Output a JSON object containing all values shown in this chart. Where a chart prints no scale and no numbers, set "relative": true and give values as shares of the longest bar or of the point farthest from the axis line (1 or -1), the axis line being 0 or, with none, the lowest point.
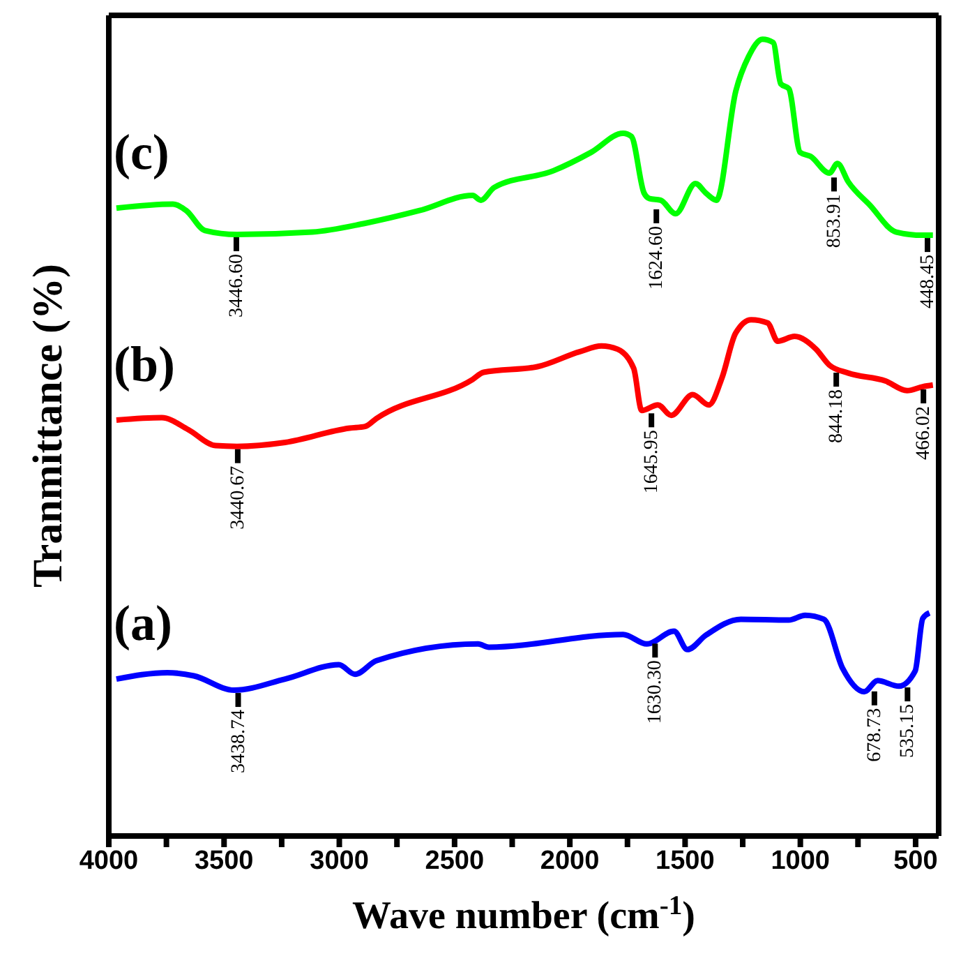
{
  "chart_data": {
    "type": "line",
    "xlabel": "Wave number (cm$^{-1}$)",
    "ylabel": "Tranmittance (%)",
    "relative": true,
    "tick_labels": "x",
    "legend": false,
    "marker": "none",
    "line_style": "solid",
    "xlim": [
      4000,
      400
    ],
    "xticks": [
      4000,
      {
        "value": 3750,
        "label": null
      },
      3500,
      {
        "value": 3250,
        "label": null
      },
      3000,
      {
        "value": 2750,
        "label": null
      },
      2500,
      {
        "value": 2250,
        "label": null
      },
      2000,
      {
        "value": 1750,
        "label": null
      },
      1500,
      {
        "value": 1250,
        "label": null
      },
      1000,
      {
        "value": 750,
        "label": null
      },
      500
    ],
    "series": [
      {
        "name": "(a)",
        "color": "#0000ff",
        "x": [
          3967,
          3746,
          3631,
          3456,
          3235,
          3002,
          2932,
          2839,
          2398,
          2351,
          1769,
          1666,
          1548,
          1490,
          1410,
          1258,
          1050,
          979,
          898,
          816,
          723,
          665,
          572,
          502,
          469,
          440
        ],
        "values": [
          0.197,
          0.205,
          0.201,
          0.183,
          0.197,
          0.215,
          0.203,
          0.22,
          0.241,
          0.237,
          0.253,
          0.241,
          0.257,
          0.234,
          0.252,
          0.272,
          0.271,
          0.277,
          0.272,
          0.21,
          0.181,
          0.195,
          0.188,
          0.207,
          0.273,
          0.28
        ]
      },
      {
        "name": "(b)",
        "color": "#ff0000",
        "x": [
          3967,
          3770,
          3655,
          3537,
          3444,
          3235,
          2955,
          2888,
          2839,
          2422,
          2374,
          2141,
          1956,
          1863,
          1793,
          1723,
          1688,
          1618,
          1560,
          1467,
          1397,
          1340,
          1281,
          1213,
          1142,
          1098,
          1025,
          932,
          874,
          792,
          630,
          537,
          469,
          425
        ],
        "values": [
          0.522,
          0.525,
          0.51,
          0.49,
          0.489,
          0.494,
          0.512,
          0.514,
          0.524,
          0.573,
          0.582,
          0.589,
          0.608,
          0.615,
          0.611,
          0.587,
          0.534,
          0.541,
          0.528,
          0.554,
          0.541,
          0.575,
          0.631,
          0.648,
          0.644,
          0.621,
          0.627,
          0.611,
          0.591,
          0.581,
          0.571,
          0.559,
          0.564,
          0.566
        ]
      },
      {
        "name": "(c)",
        "color": "#00ff00",
        "x": [
          3967,
          3722,
          3664,
          3583,
          3444,
          3117,
          2888,
          2652,
          2422,
          2386,
          2328,
          2071,
          1908,
          1769,
          1733,
          1678,
          1654,
          1606,
          1541,
          1455,
          1410,
          1364,
          1280,
          1225,
          1164,
          1118,
          1085,
          1050,
          1001,
          956,
          874,
          839,
          792,
          699,
          584,
          469,
          425
        ],
        "values": [
          0.788,
          0.793,
          0.785,
          0.76,
          0.755,
          0.758,
          0.769,
          0.785,
          0.804,
          0.798,
          0.814,
          0.835,
          0.858,
          0.882,
          0.878,
          0.807,
          0.8,
          0.798,
          0.781,
          0.819,
          0.807,
          0.798,
          0.935,
          0.978,
          1,
          0.996,
          0.944,
          0.938,
          0.858,
          0.853,
          0.832,
          0.844,
          0.821,
          0.792,
          0.758,
          0.754,
          0.754
        ]
      }
    ],
    "annotations": [
      {
        "text": "3438.74",
        "x": 3438.74,
        "y": 0.183
      },
      {
        "text": "1630.30",
        "x": 1630.3,
        "y": 0.245
      },
      {
        "text": "678.73",
        "x": 678.73,
        "y": 0.185
      },
      {
        "text": "535.15",
        "x": 535.15,
        "y": 0.19
      },
      {
        "text": "3440.67",
        "x": 3440.67,
        "y": 0.489
      },
      {
        "text": "1645.95",
        "x": 1645.95,
        "y": 0.534
      },
      {
        "text": "844.18",
        "x": 844.18,
        "y": 0.585
      },
      {
        "text": "466.02",
        "x": 466.02,
        "y": 0.564
      },
      {
        "text": "3446.60",
        "x": 3446.6,
        "y": 0.755
      },
      {
        "text": "1624.60",
        "x": 1624.6,
        "y": 0.79
      },
      {
        "text": "853.91",
        "x": 853.91,
        "y": 0.83
      },
      {
        "text": "448.45",
        "x": 448.45,
        "y": 0.754
      }
    ]
  }
}
